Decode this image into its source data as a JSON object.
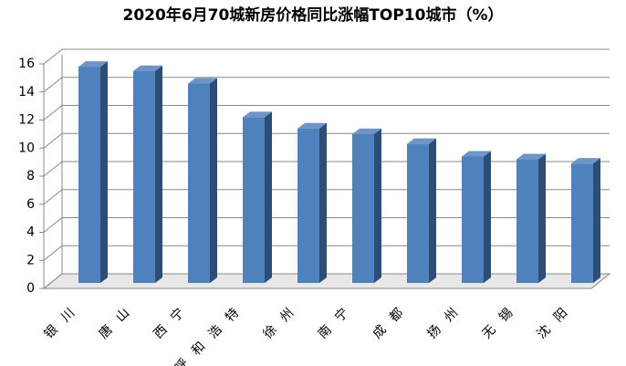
{
  "chart_data": {
    "type": "bar3d",
    "title": "2020年6月70城新房价格同比涨幅TOP10城市（%）",
    "categories": [
      "银川",
      "唐山",
      "西宁",
      "呼和浩特",
      "徐州",
      "南宁",
      "成都",
      "扬州",
      "无锡",
      "沈阳"
    ],
    "values": [
      15.8,
      15.5,
      14.6,
      12.2,
      11.4,
      11.0,
      10.3,
      9.4,
      9.2,
      8.9
    ],
    "color": "#4f81bd",
    "ylim": [
      0,
      16
    ],
    "yticks": [
      0,
      2,
      4,
      6,
      8,
      10,
      12,
      14,
      16
    ],
    "grid": true
  }
}
